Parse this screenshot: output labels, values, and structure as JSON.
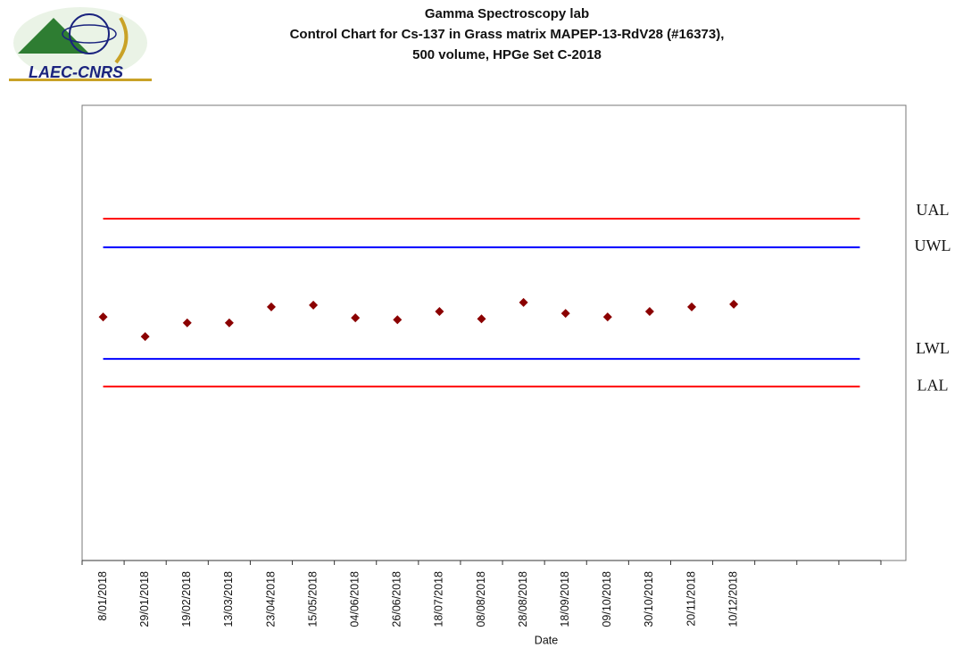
{
  "logo_text": "LAEC-CNRS",
  "chart_data": {
    "type": "scatter",
    "title": [
      "Gamma Spectroscopy lab",
      "Control Chart for Cs-137 in Grass matrix  MAPEP-13-RdV28 (#16373),",
      "500 volume, HPGe Set C-2018"
    ],
    "x_label": "Date",
    "categories": [
      "8/01/2018",
      "29/01/2018",
      "19/02/2018",
      "13/03/2018",
      "23/04/2018",
      "15/05/2018",
      "04/06/2018",
      "26/06/2018",
      "18/07/2018",
      "08/08/2018",
      "28/08/2018",
      "18/09/2018",
      "09/10/2018",
      "30/10/2018",
      "20/11/2018",
      "10/12/2018",
      null,
      null,
      null
    ],
    "values": [
      53.5,
      49.2,
      52.2,
      52.2,
      55.7,
      56.1,
      53.3,
      52.9,
      54.7,
      53.1,
      56.7,
      54.3,
      53.5,
      54.7,
      55.7,
      56.3,
      null,
      null,
      null
    ],
    "color": "#8b0000",
    "ylim": [
      0,
      100
    ],
    "limits": [
      {
        "name": "UAL",
        "value": 75.1,
        "color": "#ff0000"
      },
      {
        "name": "UWL",
        "value": 68.8,
        "color": "#0000ff"
      },
      {
        "name": "LWL",
        "value": 44.3,
        "color": "#0000ff"
      },
      {
        "name": "LAL",
        "value": 38.2,
        "color": "#ff0000"
      }
    ]
  }
}
